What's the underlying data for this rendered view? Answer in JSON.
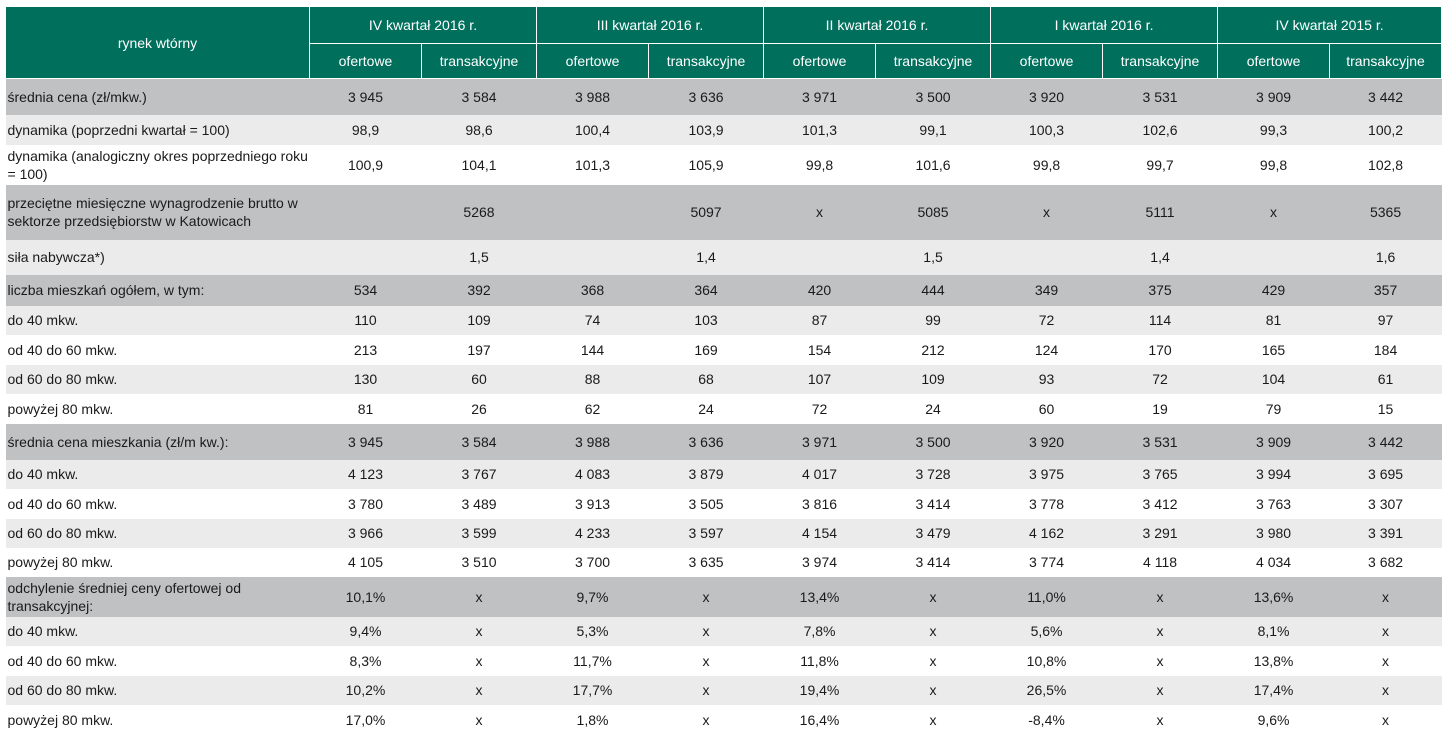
{
  "header": {
    "corner_label": "rynek wtórny",
    "quarters": [
      "IV kwartał 2016 r.",
      "III kwartał 2016 r.",
      "II kwartał 2016 r.",
      "I kwartał 2016 r.",
      "IV kwartał 2015 r."
    ],
    "subheaders": [
      "ofertowe",
      "transakcyjne",
      "ofertowe",
      "transakcyjne",
      "ofertowe",
      "transakcyjne",
      "ofertowe",
      "transakcyjne",
      "ofertowe",
      "transakcyjne"
    ]
  },
  "rows": [
    {
      "label": "średnia cena (zł/mkw.)",
      "cells": [
        "3 945",
        "3 584",
        "3 988",
        "3 636",
        "3 971",
        "3 500",
        "3 920",
        "3 531",
        "3 909",
        "3 442"
      ]
    },
    {
      "label": "dynamika (poprzedni kwartał = 100)",
      "cells": [
        "98,9",
        "98,6",
        "100,4",
        "103,9",
        "101,3",
        "99,1",
        "100,3",
        "102,6",
        "99,3",
        "100,2"
      ]
    },
    {
      "label": "dynamika (analogiczny okres poprzedniego roku  = 100)",
      "cells": [
        "100,9",
        "104,1",
        "101,3",
        "105,9",
        "99,8",
        "101,6",
        "99,8",
        "99,7",
        "99,8",
        "102,8"
      ]
    },
    {
      "label": "przeciętne miesięczne wynagrodzenie brutto w sektorze przedsiębiorstw w Katowicach",
      "cells": [
        "",
        "5268",
        "",
        "5097",
        "x",
        "5085",
        "x",
        "5111",
        "x",
        "5365"
      ]
    },
    {
      "label": "siła nabywcza*)",
      "cells": [
        "",
        "1,5",
        "",
        "1,4",
        "",
        "1,5",
        "",
        "1,4",
        "",
        "1,6"
      ]
    },
    {
      "label": "liczba mieszkań ogółem, w tym:",
      "cells": [
        "534",
        "392",
        "368",
        "364",
        "420",
        "444",
        "349",
        "375",
        "429",
        "357"
      ]
    },
    {
      "label": "do 40 mkw.",
      "cells": [
        "110",
        "109",
        "74",
        "103",
        "87",
        "99",
        "72",
        "114",
        "81",
        "97"
      ]
    },
    {
      "label": "od 40 do 60 mkw.",
      "cells": [
        "213",
        "197",
        "144",
        "169",
        "154",
        "212",
        "124",
        "170",
        "165",
        "184"
      ]
    },
    {
      "label": "od 60 do 80 mkw.",
      "cells": [
        "130",
        "60",
        "88",
        "68",
        "107",
        "109",
        "93",
        "72",
        "104",
        "61"
      ]
    },
    {
      "label": "powyżej 80 mkw.",
      "cells": [
        "81",
        "26",
        "62",
        "24",
        "72",
        "24",
        "60",
        "19",
        "79",
        "15"
      ]
    },
    {
      "label": "średnia cena mieszkania (zł/m kw.):",
      "cells": [
        "3 945",
        "3 584",
        "3 988",
        "3 636",
        "3 971",
        "3 500",
        "3 920",
        "3 531",
        "3 909",
        "3 442"
      ]
    },
    {
      "label": "do 40 mkw.",
      "cells": [
        "4 123",
        "3 767",
        "4 083",
        "3 879",
        "4 017",
        "3 728",
        "3 975",
        "3 765",
        "3 994",
        "3 695"
      ]
    },
    {
      "label": "od 40 do 60 mkw.",
      "cells": [
        "3 780",
        "3 489",
        "3 913",
        "3 505",
        "3 816",
        "3 414",
        "3 778",
        "3 412",
        "3 763",
        "3 307"
      ]
    },
    {
      "label": "od 60 do 80 mkw.",
      "cells": [
        "3 966",
        "3 599",
        "4 233",
        "3 597",
        "4 154",
        "3 479",
        "4 162",
        "3 291",
        "3 980",
        "3 391"
      ]
    },
    {
      "label": "powyżej 80 mkw.",
      "cells": [
        "4 105",
        "3 510",
        "3 700",
        "3 635",
        "3 974",
        "3 414",
        "3 774",
        "4 118",
        "4 034",
        "3 682"
      ]
    },
    {
      "label": "odchylenie średniej ceny ofertowej od transakcyjnej:",
      "cells": [
        "10,1%",
        "x",
        "9,7%",
        "x",
        "13,4%",
        "x",
        "11,0%",
        "x",
        "13,6%",
        "x"
      ]
    },
    {
      "label": "do 40 mkw.",
      "cells": [
        "9,4%",
        "x",
        "5,3%",
        "x",
        "7,8%",
        "x",
        "5,6%",
        "x",
        "8,1%",
        "x"
      ]
    },
    {
      "label": "od 40 do 60 mkw.",
      "cells": [
        "8,3%",
        "x",
        "11,7%",
        "x",
        "11,8%",
        "x",
        "10,8%",
        "x",
        "13,8%",
        "x"
      ]
    },
    {
      "label": "od 60 do 80 mkw.",
      "cells": [
        "10,2%",
        "x",
        "17,7%",
        "x",
        "19,4%",
        "x",
        "26,5%",
        "x",
        "17,4%",
        "x"
      ]
    },
    {
      "label": "powyżej 80 mkw.",
      "cells": [
        "17,0%",
        "x",
        "1,8%",
        "x",
        "16,4%",
        "x",
        "-8,4%",
        "x",
        "9,6%",
        "x"
      ]
    }
  ],
  "colors": {
    "header_bg": "#00705d",
    "row_shade": "#bfc1c3",
    "row_light": "#ebebeb"
  }
}
